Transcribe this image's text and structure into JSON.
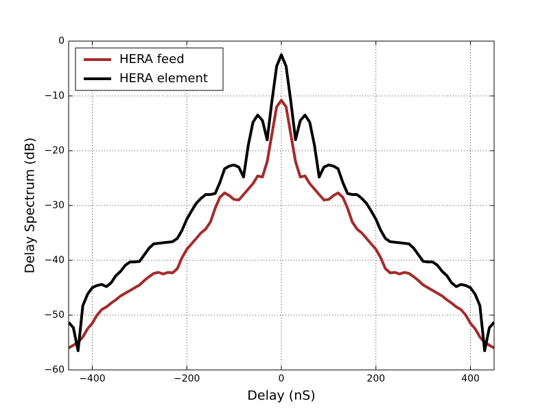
{
  "chart_data": {
    "type": "line",
    "xlabel": "Delay (nS)",
    "ylabel": "Delay Spectrum (dB)",
    "x": [
      -450,
      -440,
      -430,
      -420,
      -410,
      -400,
      -390,
      -380,
      -370,
      -360,
      -350,
      -340,
      -330,
      -320,
      -310,
      -300,
      -290,
      -280,
      -270,
      -260,
      -250,
      -240,
      -230,
      -220,
      -210,
      -200,
      -190,
      -180,
      -170,
      -160,
      -150,
      -140,
      -130,
      -120,
      -110,
      -100,
      -90,
      -80,
      -70,
      -60,
      -50,
      -40,
      -30,
      -20,
      -10,
      0,
      10,
      20,
      30,
      40,
      50,
      60,
      70,
      80,
      90,
      100,
      110,
      120,
      130,
      140,
      150,
      160,
      170,
      180,
      190,
      200,
      210,
      220,
      230,
      240,
      250,
      260,
      270,
      280,
      290,
      300,
      310,
      320,
      330,
      340,
      350,
      360,
      370,
      380,
      390,
      400,
      410,
      420,
      430,
      440,
      450
    ],
    "series": [
      {
        "name": "HERA feed",
        "color": "#a52a2a",
        "values": [
          -56,
          -55.5,
          -55,
          -54,
          -52.5,
          -51.5,
          -50,
          -49,
          -48.5,
          -47.8,
          -47.2,
          -46.5,
          -46,
          -45.5,
          -45,
          -44.5,
          -43.7,
          -43,
          -42.4,
          -42.2,
          -42.5,
          -42.2,
          -42.3,
          -41.5,
          -39.5,
          -38,
          -37,
          -36,
          -35,
          -34.3,
          -33,
          -30.5,
          -28.5,
          -27.7,
          -28.2,
          -28.9,
          -29,
          -28,
          -27,
          -26,
          -24.6,
          -24.8,
          -22,
          -17,
          -12,
          -10.8,
          -12,
          -17,
          -22,
          -24.8,
          -24.6,
          -26,
          -27,
          -28,
          -29,
          -28.9,
          -28.2,
          -27.7,
          -28.5,
          -30.5,
          -33,
          -34.3,
          -35,
          -36,
          -37,
          -38,
          -39.5,
          -41.5,
          -42.3,
          -42.2,
          -42.5,
          -42.2,
          -42.4,
          -43,
          -43.7,
          -44.5,
          -45,
          -45.5,
          -46,
          -46.5,
          -47.2,
          -47.8,
          -48.5,
          -49,
          -50,
          -51.5,
          -52.5,
          -54,
          -55,
          -55.5,
          -56
        ]
      },
      {
        "name": "HERA element",
        "color": "#000000",
        "values": [
          -51.3,
          -52.3,
          -56.5,
          -48.3,
          -46.2,
          -45,
          -44.6,
          -44.4,
          -44.8,
          -44.1,
          -42.8,
          -42,
          -40.9,
          -40.3,
          -40.3,
          -40.2,
          -39,
          -37.8,
          -37,
          -36.9,
          -36.8,
          -36.7,
          -36.6,
          -36,
          -34.5,
          -32.5,
          -31,
          -29.6,
          -28.7,
          -28,
          -28,
          -27.8,
          -25.8,
          -23.3,
          -22.8,
          -22.6,
          -23,
          -24.8,
          -19,
          -14.8,
          -13.5,
          -14.5,
          -18,
          -11,
          -4.6,
          -2.5,
          -4.6,
          -11,
          -18,
          -14.5,
          -13.5,
          -14.8,
          -19,
          -24.8,
          -23,
          -22.6,
          -22.8,
          -23.3,
          -25.8,
          -27.8,
          -28,
          -28,
          -28.7,
          -29.6,
          -31,
          -32.5,
          -34.5,
          -36,
          -36.6,
          -36.7,
          -36.8,
          -36.9,
          -37,
          -37.8,
          -39,
          -40.2,
          -40.3,
          -40.3,
          -40.9,
          -42,
          -42.8,
          -44.1,
          -44.8,
          -44.4,
          -44.6,
          -45,
          -46.2,
          -48.3,
          -56.5,
          -52.3,
          -51.3
        ]
      }
    ],
    "xlim": [
      -450,
      450
    ],
    "xticks": [
      {
        "value": -400,
        "label": "−400"
      },
      {
        "value": -200,
        "label": "−200"
      },
      0,
      200,
      400
    ],
    "ylim": [
      -60,
      0
    ],
    "yticks": [
      {
        "value": -60,
        "label": "−60"
      },
      {
        "value": -50,
        "label": "−50"
      },
      {
        "value": -40,
        "label": "−40"
      },
      {
        "value": -30,
        "label": "−30"
      },
      {
        "value": -20,
        "label": "−20"
      },
      {
        "value": -10,
        "label": "−10"
      },
      0
    ],
    "grid": true,
    "legend": "upper left"
  }
}
